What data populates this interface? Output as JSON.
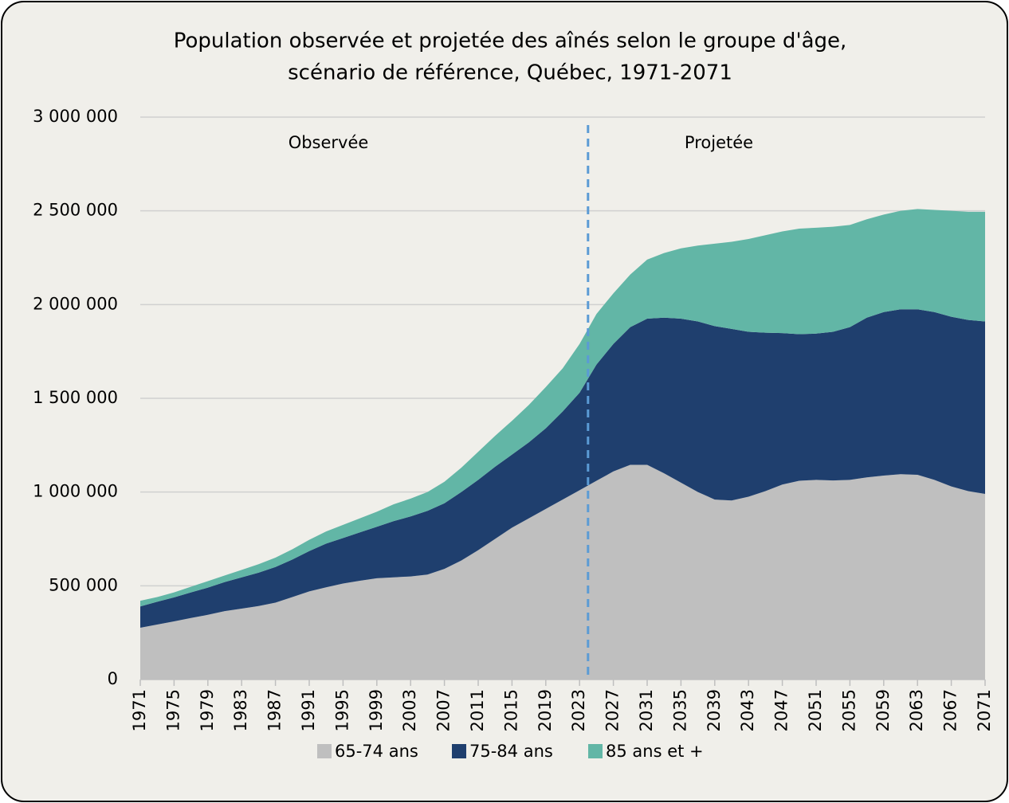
{
  "chart_data": {
    "type": "stacked_area",
    "title": [
      "Population observée et projetée des aînés selon le groupe d'âge,",
      "scénario de référence, Québec, 1971-2071"
    ],
    "x": [
      1971,
      1973,
      1975,
      1977,
      1979,
      1981,
      1983,
      1985,
      1987,
      1989,
      1991,
      1993,
      1995,
      1997,
      1999,
      2001,
      2003,
      2005,
      2007,
      2009,
      2011,
      2013,
      2015,
      2017,
      2019,
      2021,
      2023,
      2025,
      2027,
      2029,
      2031,
      2033,
      2035,
      2037,
      2039,
      2041,
      2043,
      2045,
      2047,
      2049,
      2051,
      2053,
      2055,
      2057,
      2059,
      2061,
      2063,
      2065,
      2067,
      2069,
      2071
    ],
    "series": [
      {
        "name": "65-74 ans",
        "color": "#bfbfbf",
        "values": [
          276000,
          293000,
          310000,
          328000,
          345000,
          365000,
          378000,
          392000,
          410000,
          440000,
          470000,
          492000,
          512000,
          527000,
          540000,
          545000,
          550000,
          560000,
          590000,
          635000,
          690000,
          750000,
          810000,
          860000,
          910000,
          960000,
          1010000,
          1060000,
          1110000,
          1145000,
          1145000,
          1100000,
          1050000,
          1000000,
          960000,
          955000,
          975000,
          1005000,
          1040000,
          1060000,
          1065000,
          1062000,
          1065000,
          1078000,
          1088000,
          1095000,
          1092000,
          1065000,
          1030000,
          1005000,
          990000
        ]
      },
      {
        "name": "75-84 ans",
        "color": "#1f3f6e",
        "values": [
          114000,
          122000,
          128000,
          137000,
          145000,
          155000,
          167000,
          178000,
          190000,
          200000,
          215000,
          233000,
          243000,
          258000,
          275000,
          300000,
          320000,
          340000,
          350000,
          365000,
          375000,
          385000,
          390000,
          405000,
          430000,
          470000,
          520000,
          620000,
          680000,
          735000,
          780000,
          830000,
          875000,
          910000,
          925000,
          915000,
          880000,
          845000,
          808000,
          782000,
          780000,
          793000,
          815000,
          852000,
          872000,
          880000,
          883000,
          895000,
          905000,
          913000,
          920000
        ]
      },
      {
        "name": "85 ans et +",
        "color": "#62b6a6",
        "values": [
          30000,
          25000,
          27000,
          30000,
          35000,
          35000,
          40000,
          45000,
          50000,
          55000,
          60000,
          65000,
          70000,
          75000,
          80000,
          90000,
          95000,
          100000,
          115000,
          130000,
          150000,
          165000,
          180000,
          200000,
          220000,
          230000,
          260000,
          270000,
          270000,
          280000,
          315000,
          345000,
          375000,
          405000,
          440000,
          465000,
          495000,
          520000,
          542000,
          563000,
          565000,
          560000,
          545000,
          525000,
          520000,
          525000,
          535000,
          545000,
          565000,
          577000,
          585000
        ]
      }
    ],
    "xlim": [
      1971,
      2071
    ],
    "xticks": [
      1971,
      1975,
      1979,
      1983,
      1987,
      1991,
      1995,
      1999,
      2003,
      2007,
      2011,
      2015,
      2019,
      2023,
      2027,
      2031,
      2035,
      2039,
      2043,
      2047,
      2051,
      2055,
      2059,
      2063,
      2067,
      2071
    ],
    "ylim": [
      0,
      3000000
    ],
    "yticks": [
      0,
      {
        "value": 500000,
        "label": "500 000"
      },
      {
        "value": 1000000,
        "label": "1 000 000"
      },
      {
        "value": 1500000,
        "label": "1 500 000"
      },
      {
        "value": 2000000,
        "label": "2 000 000"
      },
      {
        "value": 2500000,
        "label": "2 500 000"
      },
      {
        "value": 3000000,
        "label": "3 000 000"
      }
    ],
    "grid": true,
    "projection_start": 2024,
    "annotations": [
      "Observée",
      "Projetée"
    ],
    "legend": "bottom"
  }
}
